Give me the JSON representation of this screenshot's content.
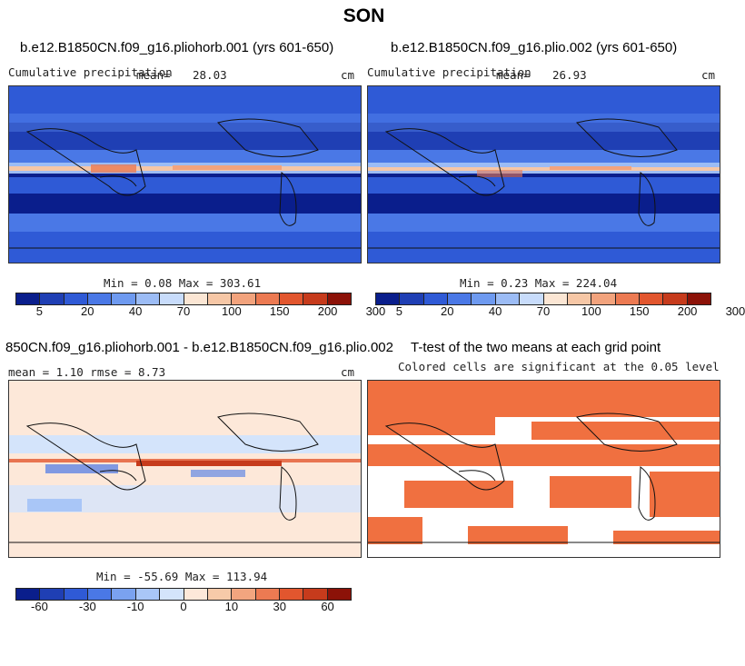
{
  "figure": {
    "title": "SON"
  },
  "panels": {
    "p1": {
      "title": "b.e12.B1850CN.f09_g16.pliohorb.001 (yrs 601-650)",
      "left_label": "Cumulative precipitation",
      "mean_label": "mean=",
      "mean_value": "28.03",
      "unit": "cm",
      "min_max": "Min =    0.08 Max = 303.61"
    },
    "p2": {
      "title": "b.e12.B1850CN.f09_g16.plio.002 (yrs 601-650)",
      "left_label": "Cumulative precipitation",
      "mean_label": "mean=",
      "mean_value": "26.93",
      "unit": "cm",
      "min_max": "Min =    0.23 Max = 224.04"
    },
    "p3": {
      "title": "850CN.f09_g16.pliohorb.001 - b.e12.B1850CN.f09_g16.plio.002",
      "stats": "mean =    1.10     rmse =    8.73",
      "unit": "cm",
      "min_max": "Min = -55.69 Max = 113.94"
    },
    "p4": {
      "title": "T-test of the two means at each grid point",
      "subtitle": "Colored cells are significant at the 0.05 level"
    }
  },
  "colorbars": {
    "precip": {
      "colors": [
        "#0a1e8c",
        "#1f3fb4",
        "#2f5ad6",
        "#4a78e6",
        "#6e9af0",
        "#9cbcf5",
        "#c8dcfb",
        "#fbe6d4",
        "#f6c7a6",
        "#f2a37d",
        "#ec7a52",
        "#e2562e",
        "#c63b1c",
        "#8c1208"
      ],
      "ticks": [
        "5",
        "20",
        "40",
        "70",
        "100",
        "150",
        "200",
        "300"
      ]
    },
    "diff": {
      "colors": [
        "#0a1e8c",
        "#1f3fb4",
        "#2f5ad6",
        "#4a78e6",
        "#7aa2f0",
        "#a9c6f7",
        "#d4e4fb",
        "#fde8d9",
        "#f7caa9",
        "#f2a57f",
        "#ec7a52",
        "#e2562e",
        "#c63b1c",
        "#8c1208"
      ],
      "ticks": [
        "-60",
        "-30",
        "-10",
        "0",
        "10",
        "30",
        "60"
      ]
    }
  },
  "map_colors": {
    "land_line": "#111111",
    "precip_dry": "#0a1e8c",
    "precip_mid": "#3a64dc",
    "precip_wet": "#c8dcfb",
    "precip_peak": "#ec7a52",
    "diff_bg": "#fde8d9",
    "diff_neg": "#4a78e6",
    "diff_pos": "#e2562e",
    "sig_fill": "#f07040"
  }
}
